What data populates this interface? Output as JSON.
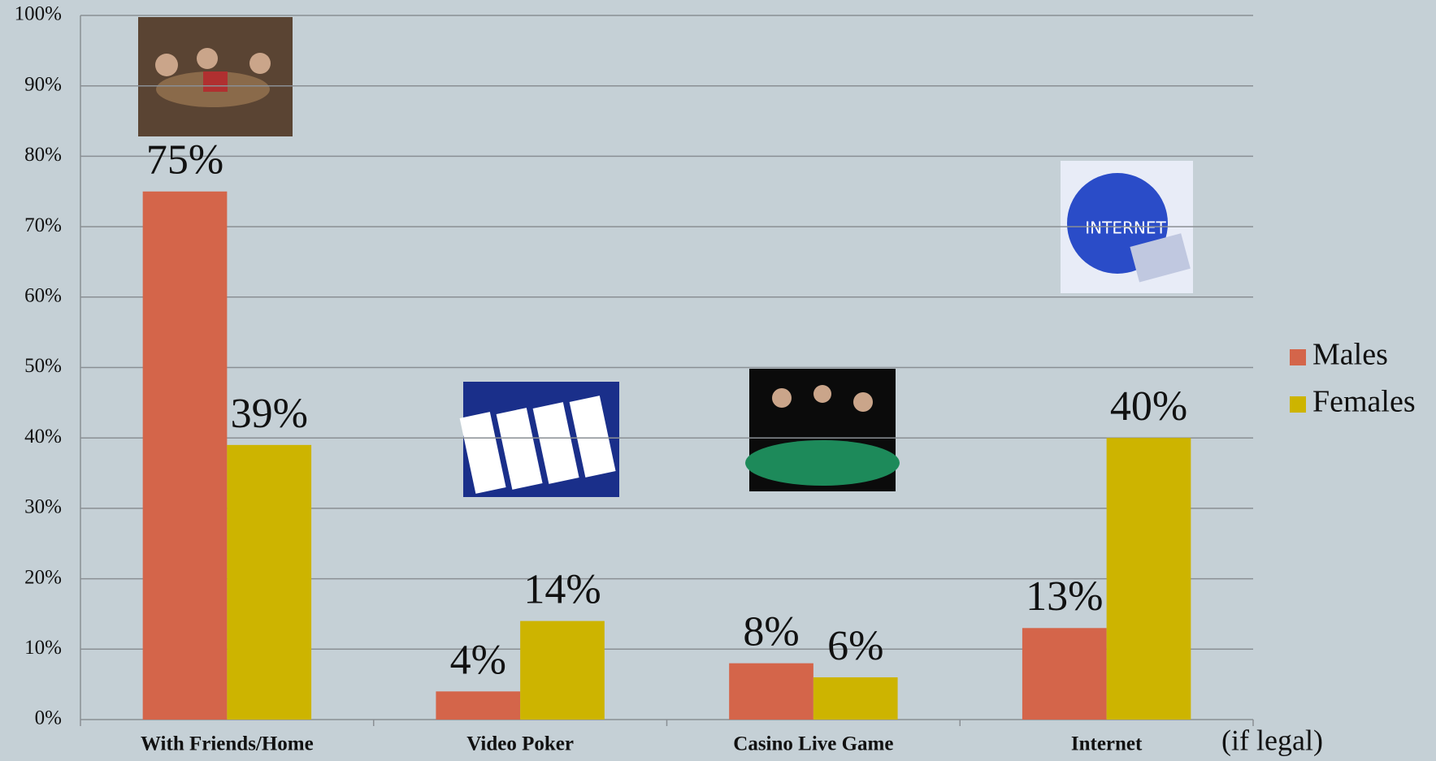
{
  "chart_data": {
    "type": "bar",
    "categories": [
      "With Friends/Home",
      "Video Poker",
      "Casino Live Game",
      "Internet"
    ],
    "series": [
      {
        "name": "Males",
        "color": "#d4654a",
        "values": [
          75,
          4,
          8,
          13
        ],
        "value_labels": [
          "75%",
          "4%",
          "8%",
          "13%"
        ]
      },
      {
        "name": "Females",
        "color": "#cdb400",
        "values": [
          39,
          14,
          6,
          40
        ],
        "value_labels": [
          "39%",
          "14%",
          "6%",
          "40%"
        ]
      }
    ],
    "ylim": [
      0,
      100
    ],
    "yticks": [
      {
        "value": 0,
        "label": "0%"
      },
      {
        "value": 10,
        "label": "10%"
      },
      {
        "value": 20,
        "label": "20%"
      },
      {
        "value": 30,
        "label": "30%"
      },
      {
        "value": 40,
        "label": "40%"
      },
      {
        "value": 50,
        "label": "50%"
      },
      {
        "value": 60,
        "label": "60%"
      },
      {
        "value": 70,
        "label": "70%"
      },
      {
        "value": 80,
        "label": "80%"
      },
      {
        "value": 90,
        "label": "90%"
      },
      {
        "value": 100,
        "label": "100%"
      }
    ],
    "grid": true,
    "legend": "right",
    "annotations": [
      "(if legal)"
    ]
  }
}
